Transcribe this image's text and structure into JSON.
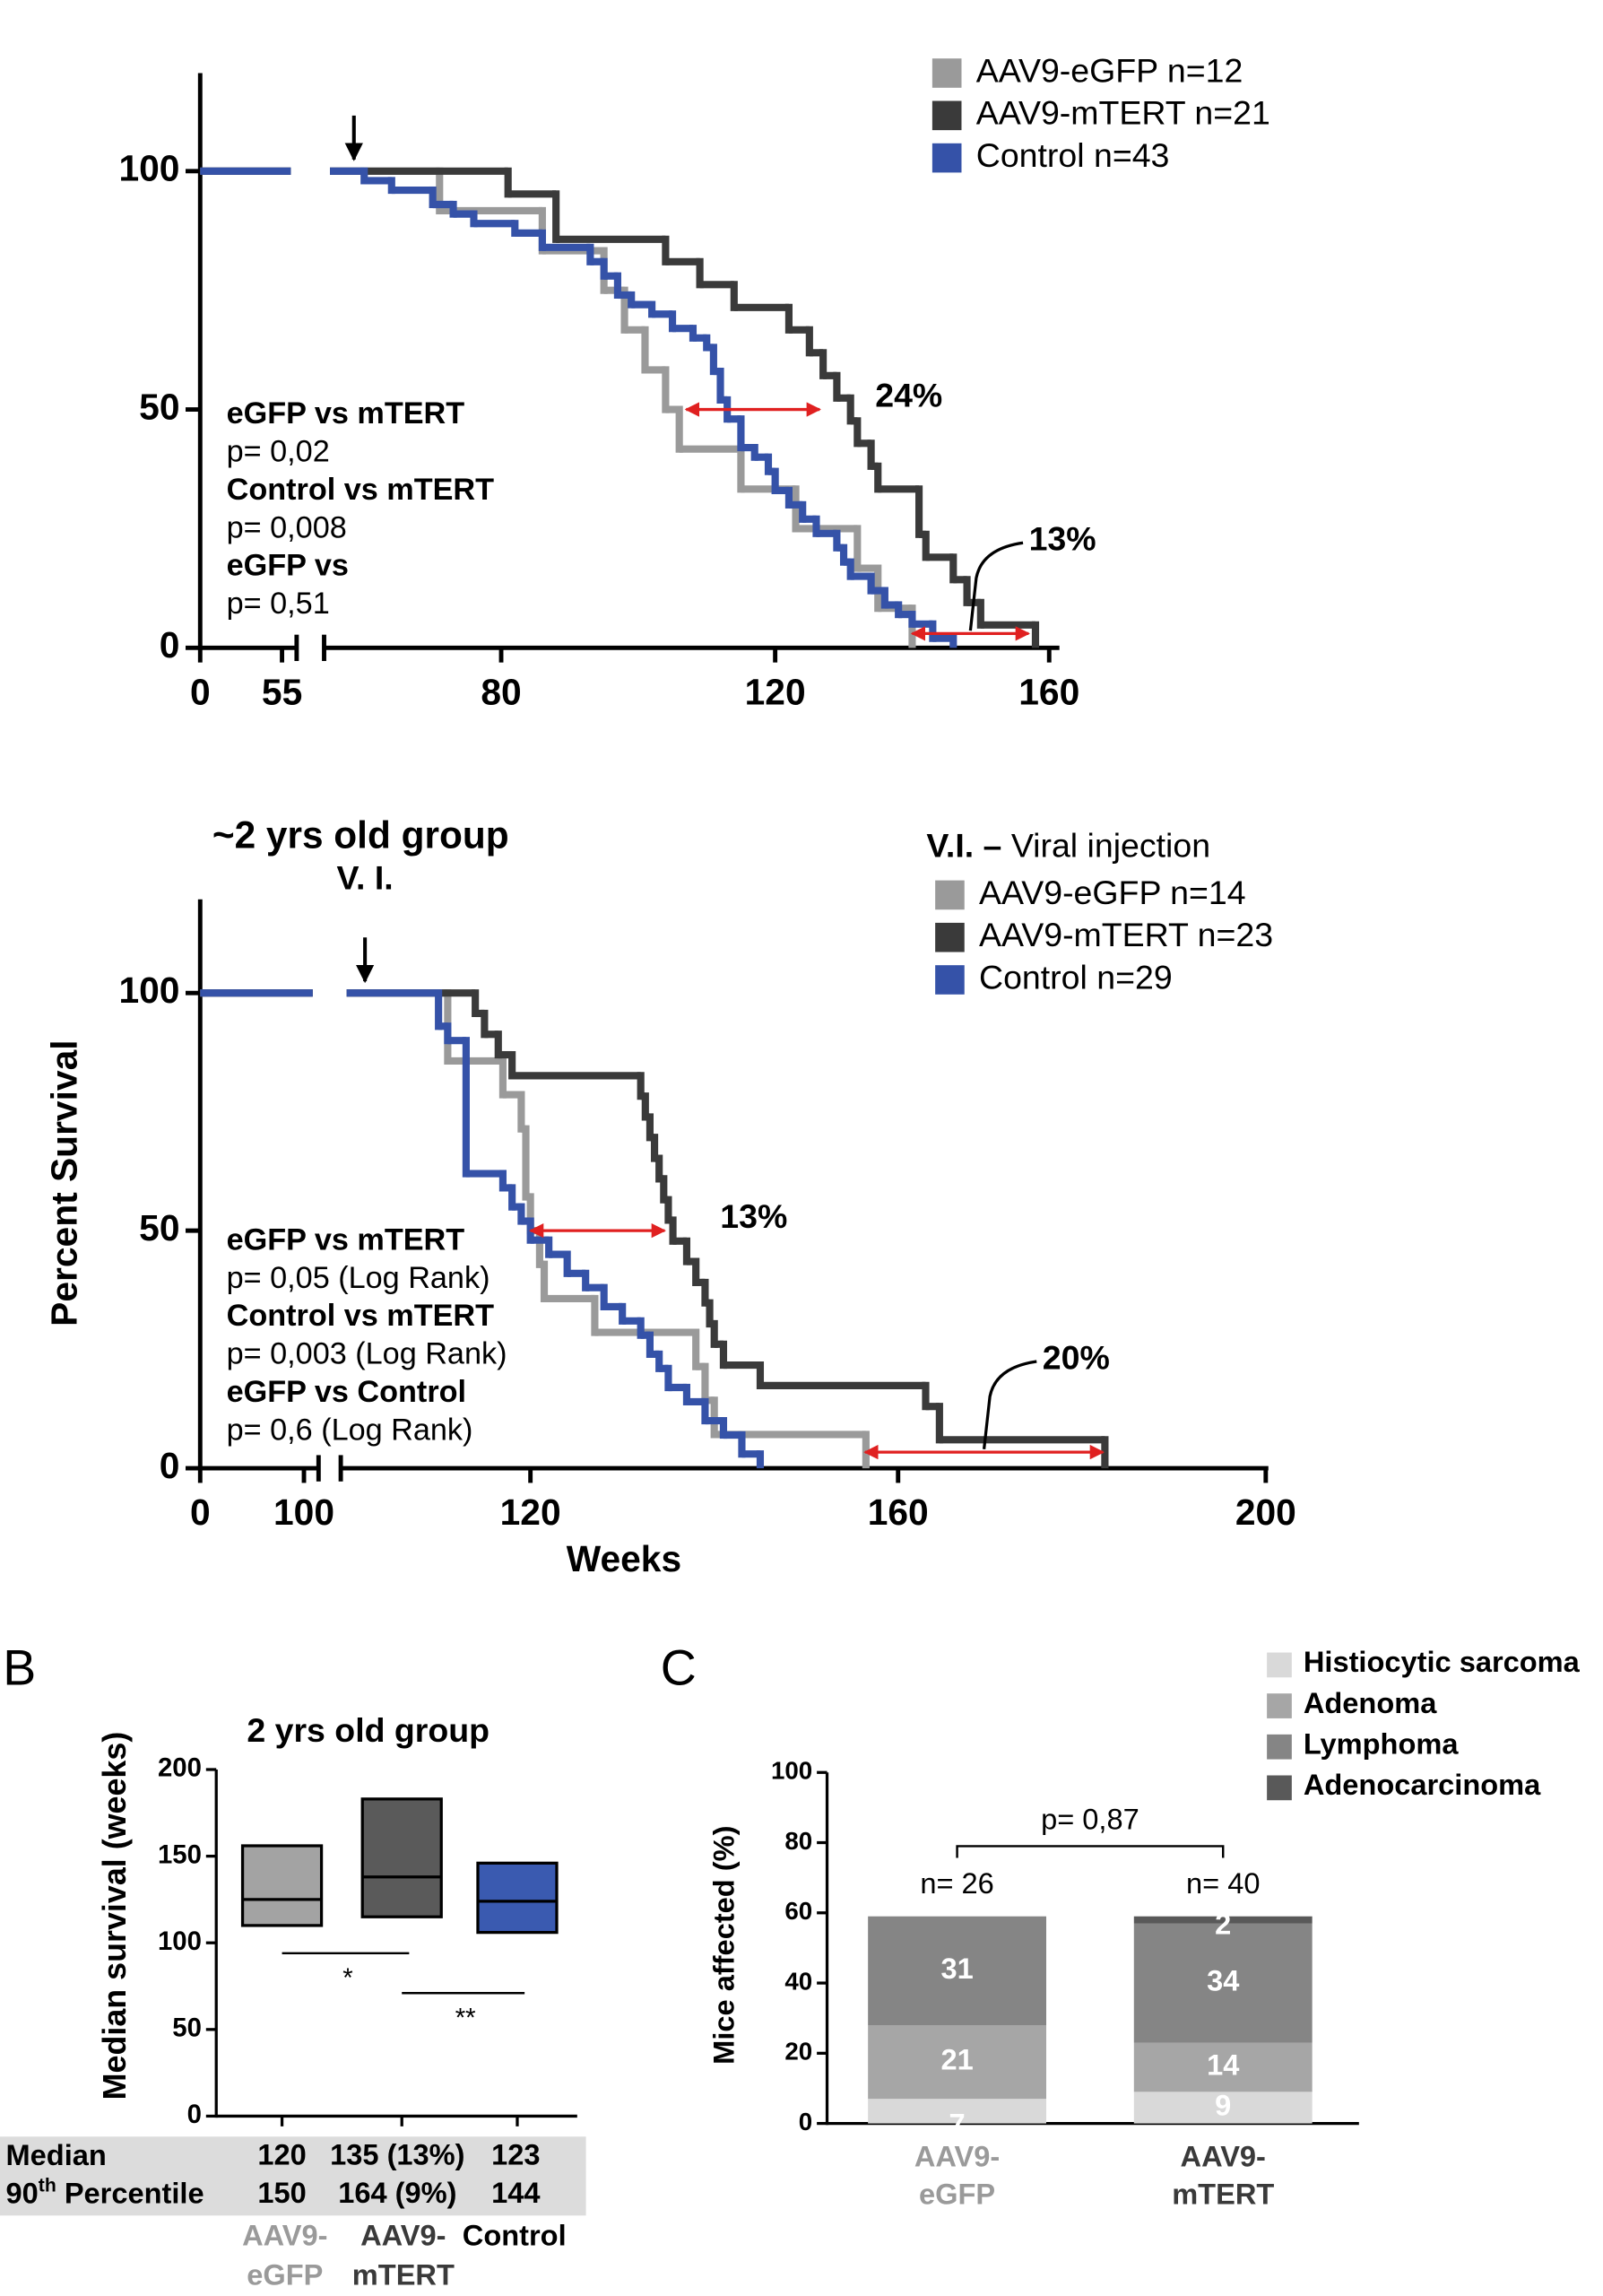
{
  "chart_data": [
    {
      "type": "survival",
      "xlim": [
        0,
        160
      ],
      "xbreak": 55,
      "xticks": [
        0,
        55,
        80,
        120,
        160
      ],
      "ylim": [
        0,
        100
      ],
      "yticks": [
        0,
        50,
        100
      ],
      "injection_week": 58.5,
      "series": [
        {
          "name": "AAV9-eGFP n=12",
          "color": "#9a9a9a",
          "x": [
            0,
            71,
            86,
            95,
            98,
            101,
            104,
            106,
            115,
            123,
            132,
            135,
            140
          ],
          "values": [
            100,
            91.7,
            83.3,
            75,
            66.7,
            58.3,
            50,
            41.7,
            33.3,
            25,
            16.7,
            8.3,
            0
          ]
        },
        {
          "name": "AAV9-mTERT n=21",
          "color": "#3a3a3a",
          "x": [
            0,
            81,
            88,
            104,
            109,
            114,
            122,
            125,
            127,
            129,
            131,
            132,
            134,
            135,
            141,
            142,
            146,
            148,
            150,
            158
          ],
          "values": [
            100,
            95.2,
            85.7,
            81,
            76.2,
            71.4,
            66.7,
            61.9,
            57.1,
            52.4,
            47.6,
            42.9,
            38.1,
            33.3,
            23.8,
            19,
            14.3,
            9.5,
            4.8,
            0
          ]
        },
        {
          "name": "Control n=43",
          "color": "#3552a8",
          "x": [
            0,
            60,
            64,
            70,
            73,
            76,
            82,
            86,
            93,
            95,
            97,
            99,
            102,
            105,
            108,
            110,
            111,
            112,
            113,
            115,
            117,
            119,
            120,
            122,
            124,
            126,
            129,
            130,
            131,
            134,
            136,
            138,
            140,
            143,
            146
          ],
          "values": [
            100,
            98,
            96,
            93,
            91,
            89,
            87,
            84,
            81,
            78,
            74,
            72,
            70,
            67,
            65,
            63,
            58,
            52,
            48,
            42,
            40,
            37,
            33,
            30,
            27,
            24,
            21,
            18,
            15,
            12,
            9,
            7,
            5,
            2,
            0
          ]
        }
      ],
      "stats": [
        {
          "label": "eGFP vs mTERT",
          "p": "p= 0,02"
        },
        {
          "label": "Control vs mTERT",
          "p": "p= 0,008"
        },
        {
          "label": "eGFP vs",
          "p": "p= 0,51"
        }
      ],
      "intervals": [
        {
          "from": 107,
          "to": 126.5,
          "y": 50,
          "label": "24%"
        },
        {
          "from": 140,
          "to": 157,
          "y": 3,
          "label": "13%",
          "leader": true
        }
      ]
    },
    {
      "type": "survival",
      "title": "~2 yrs old group",
      "injection_label": "V. I.",
      "legend_title": [
        "V.I. –",
        "Viral injection"
      ],
      "xlabel": "Weeks",
      "ylabel": "Percent Survival",
      "xlim": [
        0,
        200
      ],
      "xbreak": 100,
      "xticks": [
        0,
        100,
        120,
        160,
        200
      ],
      "ylim": [
        0,
        100
      ],
      "yticks": [
        0,
        50,
        100
      ],
      "injection_week": 102,
      "series": [
        {
          "name": "AAV9-eGFP n=14",
          "color": "#9a9a9a",
          "x": [
            0,
            111,
            117,
            119,
            119.5,
            120,
            121,
            121.5,
            127,
            138,
            139,
            140,
            156.5
          ],
          "values": [
            100,
            85.7,
            78.6,
            71.4,
            57.1,
            50,
            42.9,
            35.7,
            28.6,
            21.4,
            14.3,
            7.1,
            0
          ]
        },
        {
          "name": "AAV9-mTERT n=23",
          "color": "#3a3a3a",
          "x": [
            0,
            114,
            115,
            116.5,
            118,
            132,
            132.5,
            133,
            133.5,
            134,
            134.5,
            135,
            135.5,
            137,
            138,
            139,
            139.5,
            140,
            141,
            145,
            163,
            164.5,
            182.5
          ],
          "values": [
            100,
            95.7,
            91.3,
            87,
            82.6,
            78.3,
            73.9,
            69.6,
            65.2,
            60.9,
            56.5,
            52.2,
            47.8,
            43.5,
            39.1,
            34.8,
            30.4,
            26.1,
            21.7,
            17.4,
            13,
            6,
            0
          ]
        },
        {
          "name": "Control n=29",
          "color": "#3552a8",
          "x": [
            0,
            110,
            111,
            113,
            117,
            118,
            119,
            120,
            122,
            124,
            126,
            128,
            130,
            132,
            133,
            134,
            135,
            137,
            139,
            141,
            143,
            145
          ],
          "values": [
            100,
            93,
            90,
            62,
            59,
            55,
            52,
            48,
            45,
            41,
            38,
            34,
            31,
            28,
            24,
            21,
            17,
            14,
            10,
            7,
            3,
            0
          ]
        }
      ],
      "stats": [
        {
          "label": "eGFP vs mTERT",
          "p": "p= 0,05 (Log Rank)"
        },
        {
          "label": "Control vs mTERT",
          "p": "p= 0,003 (Log Rank)"
        },
        {
          "label": "eGFP vs Control",
          "p": "p= 0,6 (Log Rank)"
        }
      ],
      "intervals": [
        {
          "from": 120,
          "to": 134.6,
          "y": 50,
          "label": "13%"
        },
        {
          "from": 156.4,
          "to": 182.3,
          "y": 3.4,
          "label": "20%",
          "leader": true
        }
      ]
    },
    {
      "type": "box",
      "panel": "B",
      "title": "2 yrs old group",
      "ylabel": "Median survival (weeks)",
      "ylim": [
        0,
        200
      ],
      "yticks": [
        0,
        50,
        100,
        150,
        200
      ],
      "categories": [
        [
          "AAV9-",
          "eGFP"
        ],
        [
          "AAV9-",
          "mTERT"
        ],
        [
          "Control"
        ]
      ],
      "category_colors": [
        "#9a9a9a",
        "#3a3a3a",
        "#000000"
      ],
      "boxes": [
        {
          "low": 110,
          "median": 125,
          "high": 156,
          "color": "#a3a3a3"
        },
        {
          "low": 115,
          "median": 138,
          "high": 183,
          "color": "#5a5a5a"
        },
        {
          "low": 106,
          "median": 124,
          "high": 146,
          "color": "#3a5ab0"
        }
      ],
      "significance": [
        {
          "label": "*",
          "y": 94
        },
        {
          "label": "**",
          "y": 71
        }
      ],
      "table": {
        "rows": [
          {
            "label": [
              "Median"
            ],
            "cells": [
              120,
              "135 (13%)",
              123
            ]
          },
          {
            "label": [
              "90",
              "th",
              " Percentile"
            ],
            "cells": [
              150,
              "164 (9%)",
              144
            ]
          }
        ]
      }
    },
    {
      "type": "stacked_bar",
      "panel": "C",
      "ylabel": "Mice affected (%)",
      "ylim": [
        0,
        100
      ],
      "yticks": [
        0,
        20,
        40,
        60,
        80,
        100
      ],
      "categories": [
        [
          "AAV9-",
          "eGFP"
        ],
        [
          "AAV9-",
          "mTERT"
        ]
      ],
      "category_colors": [
        "#9a9a9a",
        "#3a3a3a"
      ],
      "n_labels": [
        "n= 26",
        "n= 40"
      ],
      "bracket": {
        "label": "p= 0,87",
        "y": 79
      },
      "series": [
        {
          "name": "Histiocytic sarcoma",
          "color": "#d9d9d9",
          "values": [
            7,
            9
          ]
        },
        {
          "name": "Adenoma",
          "color": "#a6a6a6",
          "values": [
            21,
            14
          ]
        },
        {
          "name": "Lymphoma",
          "color": "#858585",
          "values": [
            31,
            34
          ]
        },
        {
          "name": "Adenocarcinoma",
          "color": "#595959",
          "values": [
            null,
            2
          ]
        }
      ]
    }
  ]
}
